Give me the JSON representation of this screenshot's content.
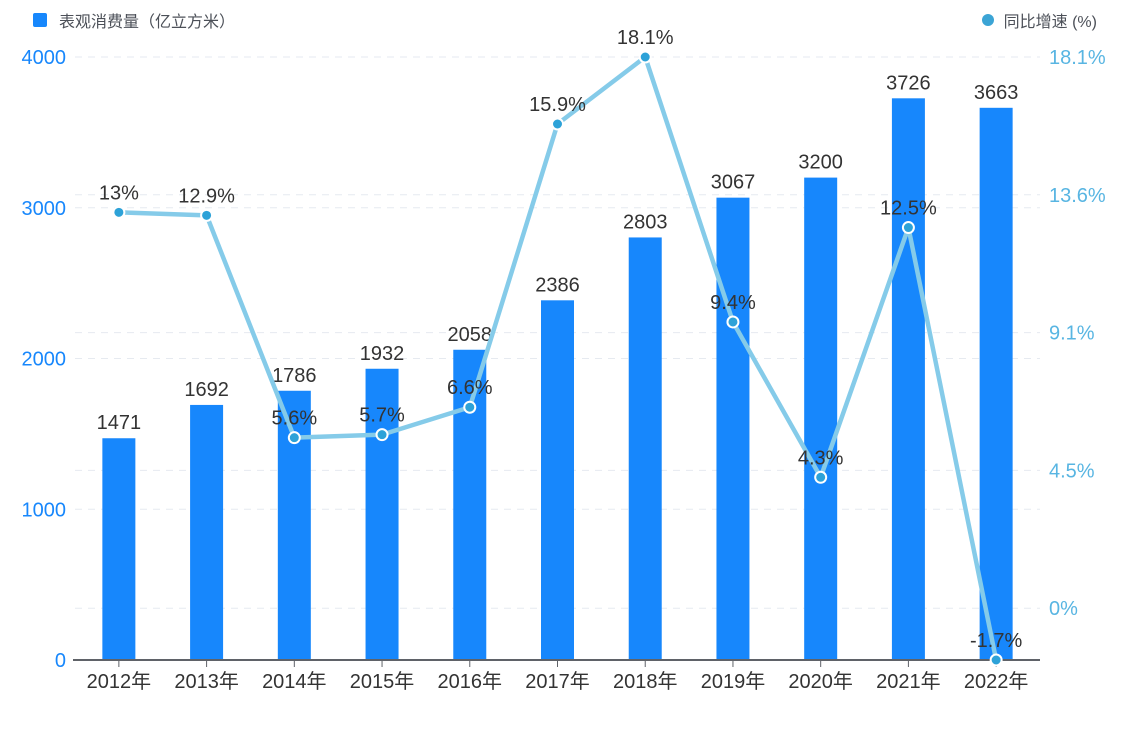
{
  "legend": {
    "bar_label": "表观消费量（亿立方米）",
    "line_label": "同比增速 (%)"
  },
  "colors": {
    "bar": "#1787fc",
    "line": "#85cbe9",
    "point_fill": "#2da2d8",
    "legend_dot": "#3ba4d5",
    "left_axis_label": "#1787fc",
    "right_axis_label": "#58b5e2",
    "value_label": "#333333",
    "x_label": "#333333",
    "grid": "#e6eaf0",
    "axis_line": "#5f6268"
  },
  "chart_data": {
    "type": "bar",
    "subtype": "bar+line combo, dual y-axis",
    "categories": [
      "2012年",
      "2013年",
      "2014年",
      "2015年",
      "2016年",
      "2017年",
      "2018年",
      "2019年",
      "2020年",
      "2021年",
      "2022年"
    ],
    "series": [
      {
        "name": "表观消费量（亿立方米）",
        "type": "bar",
        "yaxis": "left",
        "values": [
          1471,
          1692,
          1786,
          1932,
          2058,
          2386,
          2803,
          3067,
          3200,
          3726,
          3663
        ],
        "labels": [
          "1471",
          "1692",
          "1786",
          "1932",
          "2058",
          "2386",
          "2803",
          "3067",
          "3200",
          "3726",
          "3663"
        ]
      },
      {
        "name": "同比增速 (%)",
        "type": "line",
        "yaxis": "right",
        "values": [
          13,
          12.9,
          5.6,
          5.7,
          6.6,
          15.9,
          18.1,
          9.4,
          4.3,
          12.5,
          -1.7
        ],
        "labels": [
          "13%",
          "12.9%",
          "5.6%",
          "5.7%",
          "6.6%",
          "15.9%",
          "18.1%",
          "9.4%",
          "4.3%",
          "12.5%",
          "-1.7%"
        ]
      }
    ],
    "left_axis": {
      "tick_labels": [
        "0",
        "1000",
        "2000",
        "3000",
        "4000"
      ],
      "tick_values": [
        0,
        1000,
        2000,
        3000,
        4000
      ],
      "range": [
        0,
        4000
      ]
    },
    "right_axis": {
      "tick_labels": [
        "0%",
        "4.5%",
        "9.1%",
        "13.6%",
        "18.1%"
      ],
      "tick_values": [
        0,
        4.525,
        9.05,
        13.575,
        18.1
      ],
      "range": [
        -1.7,
        18.1
      ]
    },
    "grid": "dashed horizontal gridlines for both axes",
    "legend_position": "top",
    "xlabel": "",
    "ylabel_left": "亿立方米",
    "ylabel_right": "%"
  }
}
